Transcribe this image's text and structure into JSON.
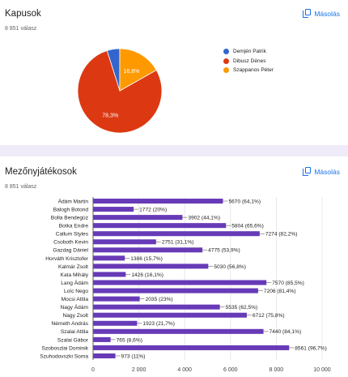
{
  "cards": [
    {
      "title": "Kapusok",
      "responses": "8 851 válasz",
      "copy_label": "Másolás",
      "chart_data": {
        "type": "pie",
        "categories": [
          "Demjén Patrik",
          "Dibusz Dénes",
          "Szappanos Péter"
        ],
        "values": [
          4.9,
          78.3,
          16.8
        ],
        "labels": [
          "",
          "78,3%",
          "16,8%"
        ],
        "colors": [
          "#3366cc",
          "#dc3912",
          "#ff9900"
        ],
        "legend": "right"
      }
    },
    {
      "title": "Mezőnyjátékosok",
      "responses": "8 851 válasz",
      "copy_label": "Másolás",
      "chart_data": {
        "type": "bar",
        "orientation": "horizontal",
        "categories": [
          "Ádám Martin",
          "Balogh Botond",
          "Bolla Bendegúz",
          "Botka Endre",
          "Callum Styles",
          "Csoboth Kevin",
          "Gazdag Dániel",
          "Horváth Krisztofer",
          "Kalmár Zsolt",
          "Kata Mihály",
          "Lang Ádám",
          "Loïc Nego",
          "Mocsi Attila",
          "Nagy Ádám",
          "Nagy Zsolt",
          "Németh András",
          "Szalai Attila",
          "Szalai Gábor",
          "Szoboszlai Dominik",
          "Szuhodovszki Soma"
        ],
        "values": [
          5670,
          1772,
          3902,
          5804,
          7274,
          2751,
          4775,
          1386,
          5030,
          1426,
          7570,
          7206,
          2035,
          5535,
          6712,
          1923,
          7440,
          765,
          8561,
          973
        ],
        "data_labels": [
          "5670 (64,1%)",
          "1772 (20%)",
          "3902 (44,1%)",
          "5804 (65,6%)",
          "7274 (82,2%)",
          "2751 (31,1%)",
          "4775 (53,9%)",
          "1386 (15,7%)",
          "5030 (56,8%)",
          "1426 (16,1%)",
          "7570 (85,5%)",
          "7206 (81,4%)",
          "2035 (23%)",
          "5535 (62,5%)",
          "6712 (75,8%)",
          "1923 (21,7%)",
          "7440 (84,1%)",
          "765 (8,6%)",
          "8561 (96,7%)",
          "973 (11%)"
        ],
        "xlim": [
          0,
          10000
        ],
        "xticks": [
          0,
          2000,
          4000,
          6000,
          8000,
          10000
        ],
        "xtick_labels": [
          "0",
          "2 000",
          "4 000",
          "6 000",
          "8 000",
          "10 000"
        ],
        "grid": true,
        "bar_color": "#673ab7"
      }
    }
  ]
}
